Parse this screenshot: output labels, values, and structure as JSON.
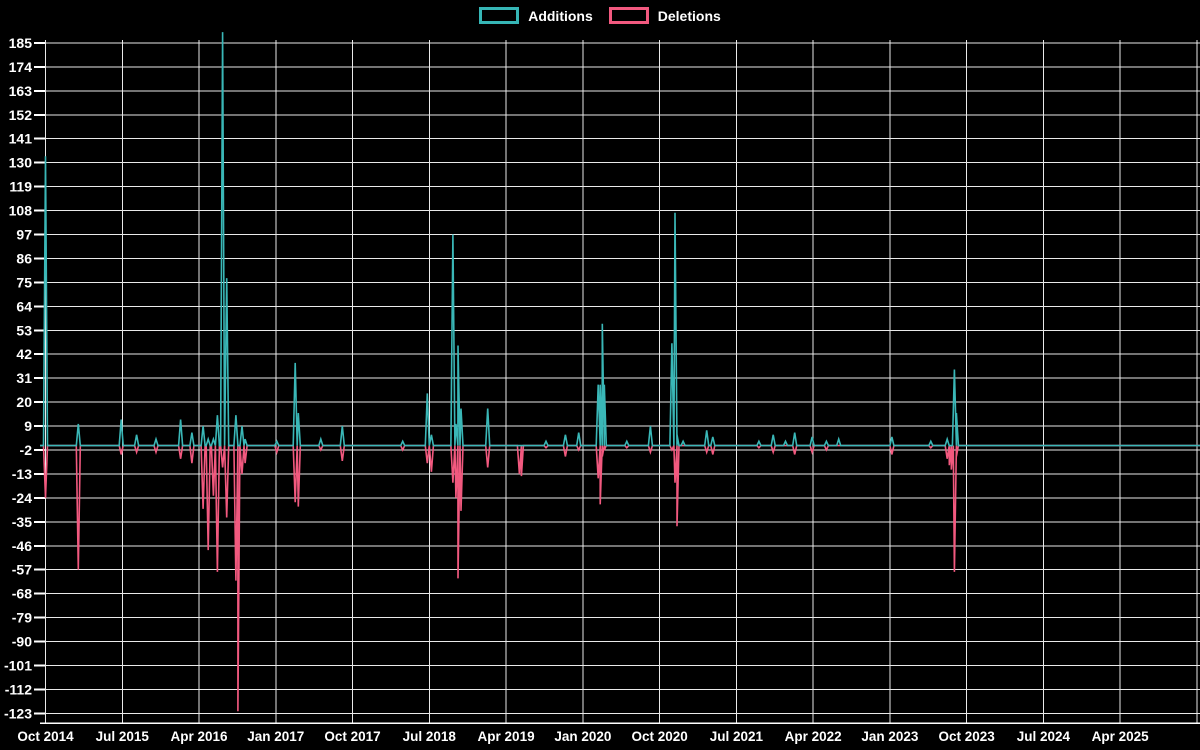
{
  "legend": {
    "items": [
      {
        "label": "Additions",
        "color": "#36b6b6"
      },
      {
        "label": "Deletions",
        "color": "#f2597f"
      }
    ]
  },
  "chart_data": {
    "type": "line",
    "title": "",
    "xlabel": "",
    "ylabel": "",
    "background_color": "#000000",
    "grid": true,
    "grid_color": "#e9e9e9",
    "text_color": "#ffffff",
    "legend_position": "top-center",
    "baseline_value": 0,
    "ylim": [
      -128,
      192
    ],
    "y_ticks": [
      185,
      174,
      163,
      152,
      141,
      130,
      119,
      108,
      97,
      86,
      75,
      64,
      53,
      42,
      31,
      20,
      9,
      -2,
      -13,
      -24,
      -35,
      -46,
      -57,
      -68,
      -79,
      -90,
      -101,
      -112,
      -123
    ],
    "x_ticks": [
      {
        "label": "Oct 2014",
        "t": 2014.75
      },
      {
        "label": "Jul 2015",
        "t": 2015.5
      },
      {
        "label": "Apr 2016",
        "t": 2016.25
      },
      {
        "label": "Jan 2017",
        "t": 2017.0
      },
      {
        "label": "Oct 2017",
        "t": 2017.75
      },
      {
        "label": "Jul 2018",
        "t": 2018.5
      },
      {
        "label": "Apr 2019",
        "t": 2019.25
      },
      {
        "label": "Jan 2020",
        "t": 2020.0
      },
      {
        "label": "Oct 2020",
        "t": 2020.75
      },
      {
        "label": "Jul 2021",
        "t": 2021.5
      },
      {
        "label": "Apr 2022",
        "t": 2022.25
      },
      {
        "label": "Jan 2023",
        "t": 2023.0
      },
      {
        "label": "Oct 2023",
        "t": 2023.75
      },
      {
        "label": "Jul 2024",
        "t": 2024.5
      },
      {
        "label": "Apr 2025",
        "t": 2025.25
      },
      {
        "label": "",
        "t": 2026.0
      }
    ],
    "series": [
      {
        "name": "Additions",
        "key": "add",
        "color": "#3ab7b7"
      },
      {
        "name": "Deletions",
        "key": "del",
        "color": "#f2597f"
      }
    ],
    "events": [
      {
        "t": 2014.75,
        "add": 133,
        "del": -24
      },
      {
        "t": 2015.07,
        "add": 10,
        "del": -57
      },
      {
        "t": 2015.49,
        "add": 12,
        "del": -4
      },
      {
        "t": 2015.64,
        "add": 5,
        "del": -3
      },
      {
        "t": 2015.83,
        "add": 3,
        "del": -3
      },
      {
        "t": 2016.07,
        "add": 12,
        "del": -6
      },
      {
        "t": 2016.18,
        "add": 6,
        "del": -8
      },
      {
        "t": 2016.29,
        "add": 9,
        "del": -29
      },
      {
        "t": 2016.34,
        "add": 3,
        "del": -48
      },
      {
        "t": 2016.39,
        "add": 3,
        "del": -23
      },
      {
        "t": 2016.43,
        "add": 14,
        "del": -58
      },
      {
        "t": 2016.48,
        "add": 190,
        "del": -10
      },
      {
        "t": 2016.52,
        "add": 77,
        "del": -33
      },
      {
        "t": 2016.61,
        "add": 14,
        "del": -62
      },
      {
        "t": 2016.63,
        "add": 0,
        "del": -122
      },
      {
        "t": 2016.67,
        "add": 9,
        "del": -13
      },
      {
        "t": 2016.7,
        "add": 3,
        "del": -8
      },
      {
        "t": 2017.01,
        "add": 2,
        "del": -3
      },
      {
        "t": 2017.19,
        "add": 38,
        "del": -26
      },
      {
        "t": 2017.22,
        "add": 15,
        "del": -28
      },
      {
        "t": 2017.44,
        "add": 3,
        "del": -2
      },
      {
        "t": 2017.65,
        "add": 9,
        "del": -7
      },
      {
        "t": 2018.24,
        "add": 2,
        "del": -2
      },
      {
        "t": 2018.48,
        "add": 24,
        "del": -8
      },
      {
        "t": 2018.52,
        "add": 5,
        "del": -12
      },
      {
        "t": 2018.73,
        "add": 97,
        "del": -17
      },
      {
        "t": 2018.76,
        "add": 10,
        "del": -24
      },
      {
        "t": 2018.78,
        "add": 46,
        "del": -61
      },
      {
        "t": 2018.81,
        "add": 17,
        "del": -30
      },
      {
        "t": 2019.07,
        "add": 17,
        "del": -10
      },
      {
        "t": 2019.38,
        "add": 0,
        "del": -13
      },
      {
        "t": 2019.4,
        "add": 0,
        "del": -14
      },
      {
        "t": 2019.64,
        "add": 2,
        "del": -1
      },
      {
        "t": 2019.83,
        "add": 5,
        "del": -5
      },
      {
        "t": 2019.96,
        "add": 6,
        "del": -2
      },
      {
        "t": 2020.15,
        "add": 28,
        "del": -15
      },
      {
        "t": 2020.17,
        "add": 28,
        "del": -27
      },
      {
        "t": 2020.19,
        "add": 56,
        "del": -5
      },
      {
        "t": 2020.21,
        "add": 28,
        "del": -2
      },
      {
        "t": 2020.43,
        "add": 2,
        "del": -1
      },
      {
        "t": 2020.66,
        "add": 9,
        "del": -3
      },
      {
        "t": 2020.87,
        "add": 47,
        "del": -2
      },
      {
        "t": 2020.9,
        "add": 107,
        "del": -17
      },
      {
        "t": 2020.92,
        "add": 5,
        "del": -37
      },
      {
        "t": 2020.98,
        "add": 2,
        "del": 0
      },
      {
        "t": 2021.21,
        "add": 7,
        "del": -3
      },
      {
        "t": 2021.27,
        "add": 4,
        "del": -4
      },
      {
        "t": 2021.72,
        "add": 2,
        "del": -1
      },
      {
        "t": 2021.86,
        "add": 5,
        "del": -3
      },
      {
        "t": 2021.98,
        "add": 2,
        "del": 0
      },
      {
        "t": 2022.07,
        "add": 6,
        "del": -4
      },
      {
        "t": 2022.24,
        "add": 4,
        "del": -3
      },
      {
        "t": 2022.38,
        "add": 2,
        "del": -2
      },
      {
        "t": 2022.5,
        "add": 3,
        "del": 0
      },
      {
        "t": 2023.02,
        "add": 4,
        "del": -4
      },
      {
        "t": 2023.4,
        "add": 2,
        "del": -1
      },
      {
        "t": 2023.56,
        "add": 3,
        "del": -6
      },
      {
        "t": 2023.58,
        "add": 0,
        "del": -9
      },
      {
        "t": 2023.6,
        "add": 0,
        "del": -11
      },
      {
        "t": 2023.63,
        "add": 35,
        "del": -58
      },
      {
        "t": 2023.65,
        "add": 15,
        "del": -5
      }
    ]
  }
}
